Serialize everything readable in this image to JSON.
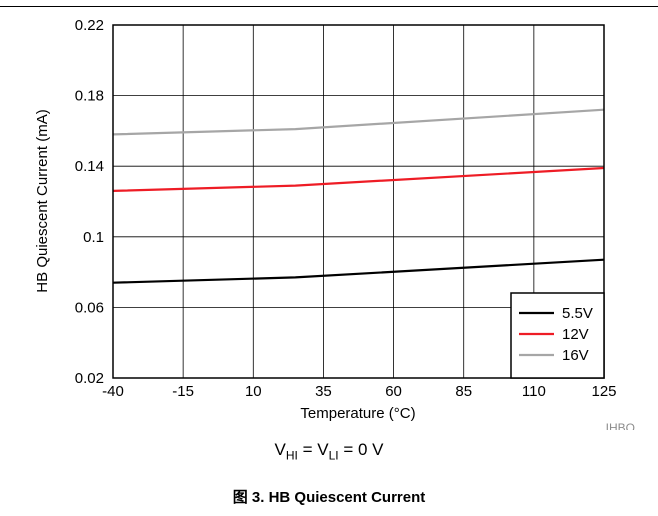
{
  "chart_data": {
    "type": "line",
    "xlabel": "Temperature (°C)",
    "ylabel": "HB Quiescent Current (mA)",
    "xlim": [
      -40,
      125
    ],
    "ylim": [
      0.02,
      0.22
    ],
    "x_ticks": [
      "-40",
      "-15",
      "10",
      "35",
      "60",
      "85",
      "110",
      "125"
    ],
    "y_ticks": [
      "0.22",
      "0.18",
      "0.14",
      "0.1",
      "0.06",
      "0.02"
    ],
    "grid": true,
    "legend_position": "bottom-right",
    "series": [
      {
        "name": "5.5V",
        "color": "#000000",
        "x": [
          -40,
          25,
          125
        ],
        "y": [
          0.074,
          0.077,
          0.087
        ]
      },
      {
        "name": "12V",
        "color": "#ee1c25",
        "x": [
          -40,
          25,
          125
        ],
        "y": [
          0.126,
          0.129,
          0.139
        ]
      },
      {
        "name": "16V",
        "color": "#a6a6a6",
        "x": [
          -40,
          25,
          125
        ],
        "y": [
          0.158,
          0.161,
          0.172
        ]
      }
    ],
    "identifier": "IHBQ"
  },
  "condition": {
    "v1_main": "V",
    "v1_sub": "HI",
    "eq1": " = ",
    "v2_main": "V",
    "v2_sub": "LI",
    "eq2": " = 0 V"
  },
  "caption": "图 3. HB Quiescent Current"
}
